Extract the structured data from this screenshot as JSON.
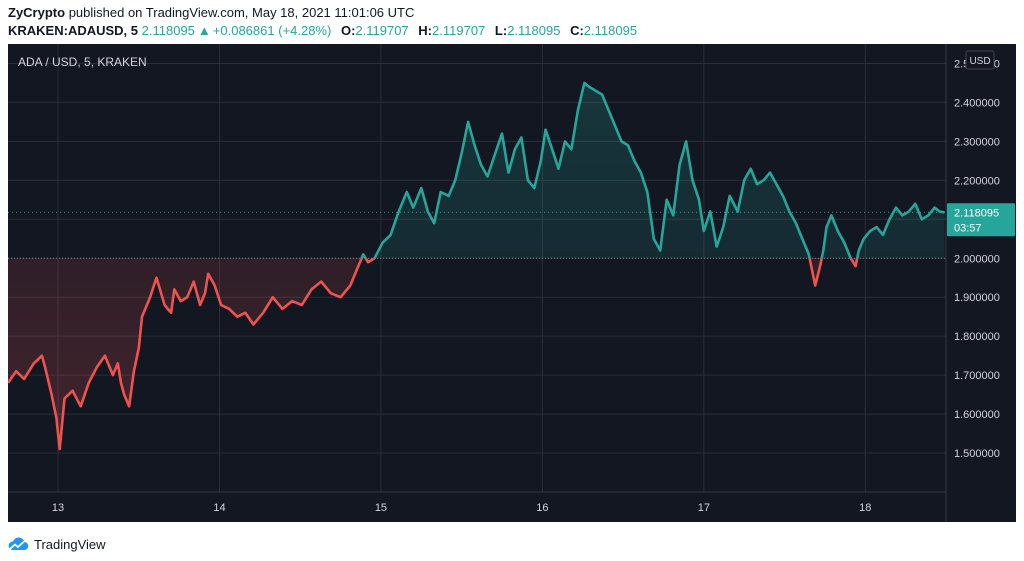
{
  "publish": {
    "author": "ZyCrypto",
    "text": "published on TradingView.com, May 18, 2021 11:01:06 UTC"
  },
  "ohlc": {
    "symbol": "KRAKEN:ADAUSD, 5",
    "price": "2.118095",
    "change": "+0.086861 (+4.28%)",
    "o_label": "O:",
    "o": "2.119707",
    "h_label": "H:",
    "h": "2.119707",
    "l_label": "L:",
    "l": "2.118095",
    "c_label": "C:",
    "c": "2.118095",
    "up_arrow_icon": "triangle-up-icon"
  },
  "footer": {
    "brand": "TradingView",
    "logo_icon": "tradingview-cloud-icon"
  },
  "colors": {
    "background": "#131722",
    "grid": "#2a2e39",
    "up": "#26a69a",
    "down": "#ef5350",
    "text": "#d1d4dc",
    "baseline": "#787b86"
  },
  "chart_data": {
    "type": "line",
    "subtype": "baseline",
    "title": "ADA / USD, 5, KRAKEN",
    "currency_label": "USD",
    "ylim": [
      1.4,
      2.55
    ],
    "baseline": 2.0,
    "y_ticks": [
      "1.500000",
      "1.600000",
      "1.700000",
      "1.800000",
      "1.900000",
      "2.000000",
      "2.100000",
      "2.200000",
      "2.300000",
      "2.400000",
      "2.500000"
    ],
    "x_ticks": [
      {
        "label": "13",
        "x": 13
      },
      {
        "label": "14",
        "x": 14
      },
      {
        "label": "15",
        "x": 15
      },
      {
        "label": "16",
        "x": 16
      },
      {
        "label": "17",
        "x": 17
      },
      {
        "label": "18",
        "x": 18
      }
    ],
    "xlim": [
      12.69,
      18.5
    ],
    "last_price": "2.118095",
    "last_price_value": 2.118095,
    "countdown": "03:57",
    "grid": true,
    "series": [
      {
        "x": [
          12.69,
          12.74,
          12.79,
          12.85,
          12.9,
          12.92,
          12.96,
          12.99,
          13.01,
          13.04,
          13.09,
          13.14,
          13.19,
          13.24,
          13.29,
          13.34,
          13.37,
          13.39,
          13.41,
          13.44,
          13.47,
          13.5,
          13.52,
          13.57,
          13.61,
          13.66,
          13.7,
          13.72,
          13.76,
          13.8,
          13.84,
          13.88,
          13.91,
          13.93,
          13.97,
          14.01,
          14.06,
          14.11,
          14.16,
          14.21,
          14.27,
          14.33,
          14.39,
          14.45,
          14.51,
          14.57,
          14.63,
          14.69,
          14.75,
          14.81,
          14.85,
          14.87,
          14.89,
          14.92,
          14.96,
          15.01,
          15.06,
          15.11,
          15.16,
          15.2,
          15.25,
          15.29,
          15.33,
          15.37,
          15.42,
          15.46,
          15.5,
          15.54,
          15.58,
          15.62,
          15.66,
          15.7,
          15.75,
          15.79,
          15.83,
          15.87,
          15.91,
          15.95,
          15.99,
          16.02,
          16.06,
          16.1,
          16.14,
          16.18,
          16.22,
          16.26,
          16.29,
          16.33,
          16.37,
          16.41,
          16.45,
          16.49,
          16.53,
          16.57,
          16.61,
          16.65,
          16.69,
          16.73,
          16.77,
          16.81,
          16.85,
          16.89,
          16.93,
          16.97,
          17.0,
          17.04,
          17.08,
          17.12,
          17.16,
          17.21,
          17.25,
          17.29,
          17.33,
          17.37,
          17.41,
          17.45,
          17.49,
          17.53,
          17.57,
          17.61,
          17.65,
          17.69,
          17.72,
          17.74,
          17.76,
          17.79,
          17.83,
          17.87,
          17.91,
          17.94,
          17.96,
          17.99,
          18.03,
          18.07,
          18.11,
          18.15,
          18.19,
          18.23,
          18.27,
          18.31,
          18.35,
          18.39,
          18.43,
          18.46,
          18.49
        ],
        "y": [
          1.68,
          1.71,
          1.69,
          1.73,
          1.75,
          1.72,
          1.65,
          1.59,
          1.51,
          1.64,
          1.66,
          1.62,
          1.68,
          1.72,
          1.75,
          1.7,
          1.73,
          1.68,
          1.65,
          1.62,
          1.71,
          1.77,
          1.85,
          1.9,
          1.95,
          1.88,
          1.86,
          1.92,
          1.89,
          1.9,
          1.94,
          1.88,
          1.91,
          1.96,
          1.93,
          1.88,
          1.87,
          1.85,
          1.86,
          1.83,
          1.86,
          1.9,
          1.87,
          1.89,
          1.88,
          1.92,
          1.94,
          1.91,
          1.9,
          1.93,
          1.97,
          1.99,
          2.01,
          1.99,
          2.0,
          2.04,
          2.06,
          2.12,
          2.17,
          2.13,
          2.18,
          2.12,
          2.09,
          2.17,
          2.16,
          2.2,
          2.27,
          2.35,
          2.29,
          2.24,
          2.21,
          2.26,
          2.32,
          2.22,
          2.28,
          2.31,
          2.2,
          2.18,
          2.25,
          2.33,
          2.28,
          2.23,
          2.3,
          2.28,
          2.38,
          2.45,
          2.44,
          2.43,
          2.42,
          2.38,
          2.34,
          2.3,
          2.29,
          2.25,
          2.22,
          2.17,
          2.05,
          2.02,
          2.15,
          2.11,
          2.24,
          2.3,
          2.2,
          2.15,
          2.07,
          2.12,
          2.03,
          2.08,
          2.16,
          2.12,
          2.2,
          2.23,
          2.19,
          2.2,
          2.22,
          2.19,
          2.16,
          2.12,
          2.09,
          2.05,
          2.01,
          1.93,
          1.98,
          2.02,
          2.08,
          2.11,
          2.07,
          2.04,
          2.0,
          1.98,
          2.02,
          2.05,
          2.07,
          2.08,
          2.06,
          2.1,
          2.13,
          2.11,
          2.12,
          2.14,
          2.1,
          2.11,
          2.13,
          2.12,
          2.118
        ]
      }
    ]
  }
}
